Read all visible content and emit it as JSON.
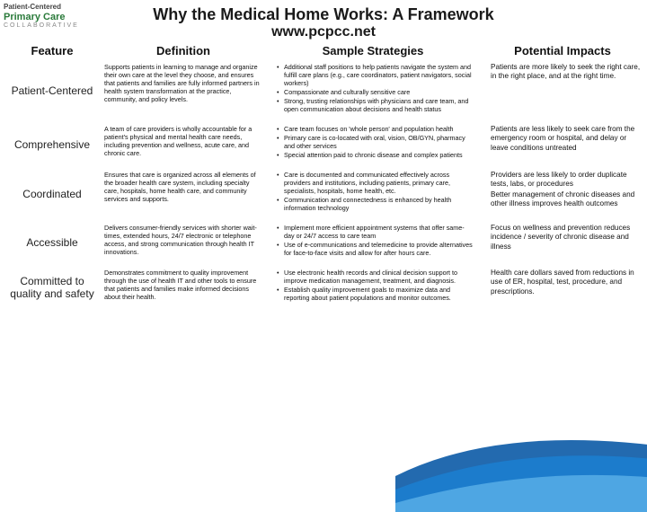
{
  "logo": {
    "line1": "Patient-Centered",
    "line2": "Primary Care",
    "line3": "COLLABORATIVE"
  },
  "title": "Why the Medical Home Works: A Framework",
  "subtitle": "www.pcpcc.net",
  "headers": {
    "feature": "Feature",
    "definition": "Definition",
    "strategies": "Sample Strategies",
    "impacts": "Potential Impacts"
  },
  "rows": [
    {
      "feature": "Patient-Centered",
      "definition": "Supports patients in learning to manage and organize their own care at the level they choose, and ensures that patients and families are fully informed partners in health system transformation at the practice, community, and policy levels.",
      "strategies": [
        "Additional staff positions to help patients navigate the system and fulfill care plans (e.g., care coordinators, patient navigators, social workers)",
        "Compassionate and culturally sensitive care",
        "Strong, trusting relationships with physicians and care team, and open communication about decisions and health status"
      ],
      "impacts": [
        "Patients are more likely to seek the right care, in the right place, and at the right time."
      ]
    },
    {
      "feature": "Comprehensive",
      "definition": "A team of care providers is wholly accountable for a patient's physical and mental health care needs, including prevention and wellness, acute care, and chronic care.",
      "strategies": [
        "Care team focuses on 'whole person' and population health",
        "Primary care is co-located with oral, vision, OB/GYN, pharmacy and other services",
        "Special attention paid to chronic disease and complex patients"
      ],
      "impacts": [
        "Patients are less likely to seek care from the emergency room or hospital, and delay or leave conditions untreated"
      ]
    },
    {
      "feature": "Coordinated",
      "definition": "Ensures that care is organized across all elements of the broader health care system, including specialty care, hospitals, home health care, and community services and supports.",
      "strategies": [
        "Care is documented and communicated effectively across providers and institutions, including patients, primary care, specialists, hospitals, home health, etc.",
        "Communication and connectedness is enhanced by health information technology"
      ],
      "impacts": [
        "Providers are less likely to order duplicate tests, labs, or procedures",
        "Better management of chronic diseases and other illness improves health outcomes"
      ]
    },
    {
      "feature": "Accessible",
      "definition": "Delivers consumer-friendly services with shorter wait-times, extended hours, 24/7 electronic or telephone access, and strong communication through health IT innovations.",
      "strategies": [
        "Implement more efficient appointment systems that offer same-day or 24/7 access to care team",
        "Use of e-communications and telemedicine to provide alternatives for face-to-face visits and allow for after hours care."
      ],
      "impacts": [
        "Focus on wellness and prevention reduces incidence / severity of chronic disease and illness"
      ]
    },
    {
      "feature": "Committed to quality and safety",
      "definition": "Demonstrates commitment to quality improvement through the use of health IT and other tools to ensure that patients and families make informed decisions about their health.",
      "strategies": [
        "Use electronic health records and clinical decision support to improve medication management, treatment, and diagnosis.",
        "Establish quality improvement goals to maximize data and reporting about patient populations and monitor outcomes."
      ],
      "impacts": [
        "Health care dollars saved from reductions in use of ER, hospital, test, procedure, and prescriptions."
      ]
    }
  ],
  "swoosh_colors": [
    "#0b5aa6",
    "#1b7fd1",
    "#5bb0e8"
  ]
}
